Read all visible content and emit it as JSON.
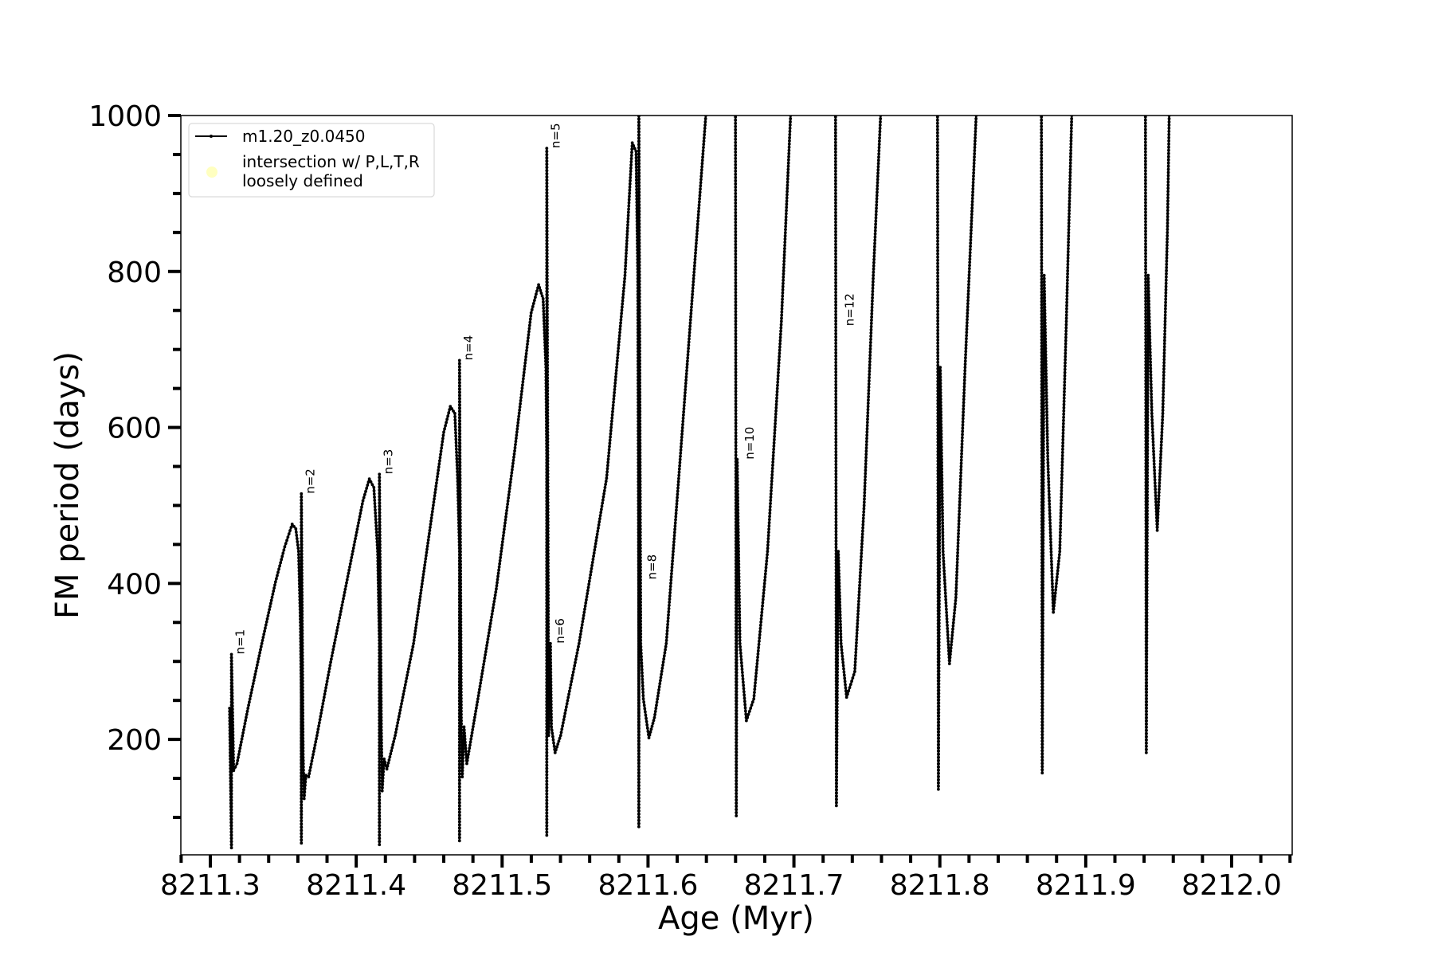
{
  "chart_data": {
    "type": "line",
    "title": "",
    "xlabel": "Age (Myr)",
    "ylabel": "FM period (days)",
    "xlim": [
      8211.2798,
      8212.0415
    ],
    "ylim": [
      52,
      1000
    ],
    "xticks": [
      8211.3,
      8211.4,
      8211.5,
      8211.6,
      8211.7,
      8211.8,
      8211.9,
      8212.0
    ],
    "xtick_labels": [
      "8211.3",
      "8211.4",
      "8211.5",
      "8211.6",
      "8211.7",
      "8211.8",
      "8211.9",
      "8212.0"
    ],
    "yticks": [
      200,
      400,
      600,
      800,
      1000
    ],
    "ytick_labels": [
      "200",
      "400",
      "600",
      "800",
      "1000"
    ],
    "x_minor_step": 0.02,
    "y_minor_step": 50,
    "grid": false,
    "legend_position": "top-left",
    "legend": [
      {
        "label": "m1.20_z0.0450",
        "marker": "line-with-dots",
        "color": "#000000"
      },
      {
        "label_lines": [
          "intersection w/ P,L,T,R",
          "loosely defined"
        ],
        "marker": "circle",
        "color": "#ffffc0"
      }
    ],
    "series": [
      {
        "name": "m1.20_z0.0450",
        "color": "#000000",
        "points": [
          [
            8211.3132,
            240
          ],
          [
            8211.3145,
            61
          ],
          [
            8211.3145,
            309
          ],
          [
            8211.316,
            160
          ],
          [
            8211.3183,
            169
          ],
          [
            8211.3258,
            240
          ],
          [
            8211.3353,
            323
          ],
          [
            8211.3447,
            402
          ],
          [
            8211.351,
            447
          ],
          [
            8211.3561,
            476
          ],
          [
            8211.3586,
            470
          ],
          [
            8211.3605,
            441
          ],
          [
            8211.3618,
            346
          ],
          [
            8211.3624,
            252
          ],
          [
            8211.3624,
            67
          ],
          [
            8211.3624,
            515
          ],
          [
            8211.3636,
            181
          ],
          [
            8211.3643,
            124
          ],
          [
            8211.3655,
            154
          ],
          [
            8211.3674,
            152
          ],
          [
            8211.3731,
            205
          ],
          [
            8211.3825,
            299
          ],
          [
            8211.3951,
            417
          ],
          [
            8211.4046,
            506
          ],
          [
            8211.409,
            534
          ],
          [
            8211.4121,
            523
          ],
          [
            8211.4147,
            441
          ],
          [
            8211.4159,
            323
          ],
          [
            8211.4159,
            65
          ],
          [
            8211.4159,
            540
          ],
          [
            8211.4172,
            216
          ],
          [
            8211.4178,
            134
          ],
          [
            8211.4191,
            175
          ],
          [
            8211.421,
            162
          ],
          [
            8211.4267,
            205
          ],
          [
            8211.4393,
            323
          ],
          [
            8211.4519,
            488
          ],
          [
            8211.46,
            594
          ],
          [
            8211.4645,
            627
          ],
          [
            8211.4676,
            618
          ],
          [
            8211.4695,
            535
          ],
          [
            8211.4708,
            441
          ],
          [
            8211.4708,
            70
          ],
          [
            8211.4708,
            686
          ],
          [
            8211.472,
            228
          ],
          [
            8211.4727,
            152
          ],
          [
            8211.4739,
            216
          ],
          [
            8211.4758,
            169
          ],
          [
            8211.4834,
            252
          ],
          [
            8211.496,
            393
          ],
          [
            8211.5086,
            570
          ],
          [
            8211.5199,
            747
          ],
          [
            8211.525,
            783
          ],
          [
            8211.5281,
            765
          ],
          [
            8211.53,
            677
          ],
          [
            8211.5306,
            559
          ],
          [
            8211.5306,
            77
          ],
          [
            8211.5306,
            958
          ],
          [
            8211.5319,
            205
          ],
          [
            8211.5331,
            323
          ],
          [
            8211.5338,
            216
          ],
          [
            8211.5363,
            183
          ],
          [
            8211.5401,
            205
          ],
          [
            8211.5527,
            323
          ],
          [
            8211.5716,
            535
          ],
          [
            8211.5842,
            795
          ],
          [
            8211.5892,
            965
          ],
          [
            8211.5918,
            954
          ],
          [
            8211.593,
            795
          ],
          [
            8211.5937,
            323
          ],
          [
            8211.5937,
            88
          ],
          [
            8211.5937,
            1020
          ],
          [
            8211.595,
            323
          ],
          [
            8211.5968,
            252
          ],
          [
            8211.6006,
            202
          ],
          [
            8211.6044,
            228
          ],
          [
            8211.6125,
            323
          ],
          [
            8211.622,
            559
          ],
          [
            8211.6314,
            795
          ],
          [
            8211.6396,
            1000
          ],
          [
            8211.6415,
            1054
          ],
          [
            8211.6599,
            1031
          ],
          [
            8211.6605,
            102
          ],
          [
            8211.6611,
            559
          ],
          [
            8211.663,
            323
          ],
          [
            8211.6674,
            224
          ],
          [
            8211.6725,
            252
          ],
          [
            8211.6819,
            441
          ],
          [
            8211.6914,
            736
          ],
          [
            8211.6977,
            1000
          ],
          [
            8211.6989,
            1042
          ],
          [
            8211.7285,
            1031
          ],
          [
            8211.7291,
            115
          ],
          [
            8211.7304,
            441
          ],
          [
            8211.7323,
            323
          ],
          [
            8211.7361,
            254
          ],
          [
            8211.7417,
            287
          ],
          [
            8211.7481,
            500
          ],
          [
            8211.7544,
            795
          ],
          [
            8211.7594,
            1000
          ],
          [
            8211.7607,
            1042
          ],
          [
            8211.7984,
            1031
          ],
          [
            8211.799,
            136
          ],
          [
            8211.8003,
            677
          ],
          [
            8211.8022,
            441
          ],
          [
            8211.8066,
            297
          ],
          [
            8211.811,
            382
          ],
          [
            8211.8173,
            677
          ],
          [
            8211.8249,
            1000
          ],
          [
            8211.8261,
            1042
          ],
          [
            8211.8696,
            1031
          ],
          [
            8211.8702,
            157
          ],
          [
            8211.8715,
            795
          ],
          [
            8211.874,
            559
          ],
          [
            8211.8778,
            363
          ],
          [
            8211.8822,
            441
          ],
          [
            8211.8867,
            736
          ],
          [
            8211.8904,
            1000
          ],
          [
            8211.8917,
            1042
          ],
          [
            8211.9409,
            1031
          ],
          [
            8211.9415,
            183
          ],
          [
            8211.9428,
            795
          ],
          [
            8211.9453,
            618
          ],
          [
            8211.949,
            468
          ],
          [
            8211.9528,
            618
          ],
          [
            8211.956,
            854
          ],
          [
            8211.9572,
            1000
          ],
          [
            8211.9585,
            1042
          ]
        ]
      }
    ],
    "annotations": [
      {
        "text": "n=1",
        "x": 8211.3145,
        "y": 309
      },
      {
        "text": "n=2",
        "x": 8211.3624,
        "y": 515
      },
      {
        "text": "n=3",
        "x": 8211.4159,
        "y": 540
      },
      {
        "text": "n=4",
        "x": 8211.4708,
        "y": 686
      },
      {
        "text": "n=5",
        "x": 8211.5306,
        "y": 958
      },
      {
        "text": "n=6",
        "x": 8211.5338,
        "y": 323
      },
      {
        "text": "n=8",
        "x": 8211.5968,
        "y": 405
      },
      {
        "text": "n=10",
        "x": 8211.6637,
        "y": 559
      },
      {
        "text": "n=12",
        "x": 8211.7323,
        "y": 730
      }
    ]
  }
}
